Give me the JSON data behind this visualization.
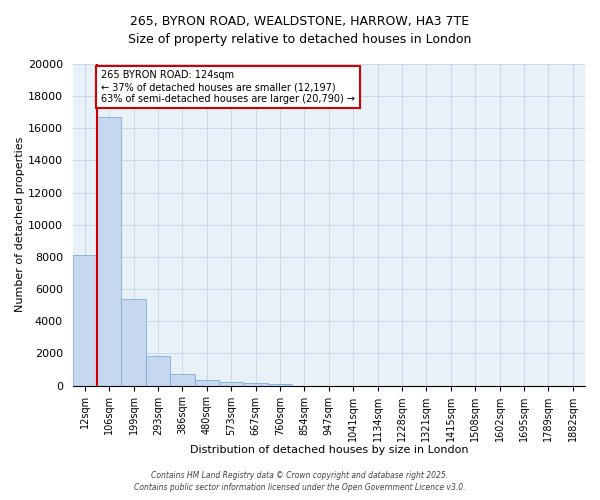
{
  "title_line1": "265, BYRON ROAD, WEALDSTONE, HARROW, HA3 7TE",
  "title_line2": "Size of property relative to detached houses in London",
  "xlabel": "Distribution of detached houses by size in London",
  "ylabel": "Number of detached properties",
  "bar_labels": [
    "12sqm",
    "106sqm",
    "199sqm",
    "293sqm",
    "386sqm",
    "480sqm",
    "573sqm",
    "667sqm",
    "760sqm",
    "854sqm",
    "947sqm",
    "1041sqm",
    "1134sqm",
    "1228sqm",
    "1321sqm",
    "1415sqm",
    "1508sqm",
    "1602sqm",
    "1695sqm",
    "1789sqm",
    "1882sqm"
  ],
  "bar_values": [
    8100,
    16700,
    5400,
    1850,
    750,
    320,
    210,
    160,
    100,
    0,
    0,
    0,
    0,
    0,
    0,
    0,
    0,
    0,
    0,
    0,
    0
  ],
  "bar_color": "#c5d8f0",
  "bar_edge_color": "#7bafd4",
  "annotation_title": "265 BYRON ROAD: 124sqm",
  "annotation_line1": "← 37% of detached houses are smaller (12,197)",
  "annotation_line2": "63% of semi-detached houses are larger (20,790) →",
  "annotation_box_color": "#ffffff",
  "annotation_border_color": "#cc0000",
  "vline_color": "#cc0000",
  "vline_x_bar_index": 1,
  "ylim": [
    0,
    20000
  ],
  "yticks": [
    0,
    2000,
    4000,
    6000,
    8000,
    10000,
    12000,
    14000,
    16000,
    18000,
    20000
  ],
  "grid_color": "#c8d8e8",
  "background_color": "#e8f0f8",
  "footer_line1": "Contains HM Land Registry data © Crown copyright and database right 2025.",
  "footer_line2": "Contains public sector information licensed under the Open Government Licence v3.0."
}
